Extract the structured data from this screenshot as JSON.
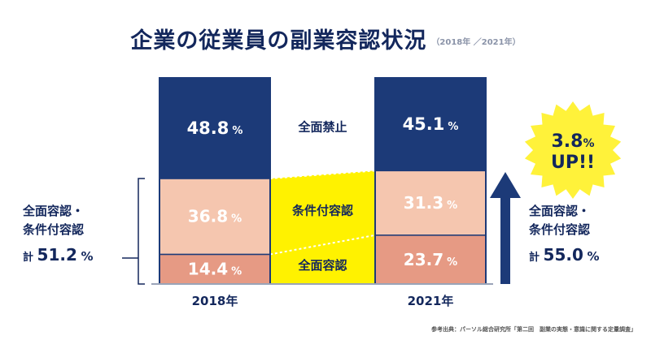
{
  "title": "企業の従業員の副業容認状況",
  "subtitle": "（2018年 ／2021年）",
  "chart_data": {
    "type": "bar",
    "stacked": true,
    "categories": [
      "2018年",
      "2021年"
    ],
    "series": [
      {
        "name": "全面容認",
        "values": [
          14.4,
          23.7
        ],
        "labels": [
          "14.4",
          "23.7"
        ],
        "color": "#e69a84"
      },
      {
        "name": "条件付容認",
        "values": [
          36.8,
          31.3
        ],
        "labels": [
          "36.8",
          "31.3"
        ],
        "color": "#f5c6af"
      },
      {
        "name": "全面禁止",
        "values": [
          48.8,
          45.1
        ],
        "labels": [
          "48.8",
          "45.1"
        ],
        "color": "#1c3a78"
      }
    ],
    "unit": "%",
    "ylim": [
      0,
      100
    ]
  },
  "left_summary": {
    "line1": "全面容認・",
    "line2": "条件付容認",
    "prefix": "計",
    "value": "51.2",
    "unit": "%"
  },
  "right_summary": {
    "line1": "全面容認・",
    "line2": "条件付容認",
    "prefix": "計",
    "value": "55.0",
    "unit": "%"
  },
  "badge": {
    "value": "3.8",
    "unit": "%",
    "text": "UP!!"
  },
  "source": "参考出典：パーソル総合研究所「第二回　副業の実態・意識に関する定量調査」",
  "colors": {
    "navy": "#1c3a78",
    "yellow": "#fff200",
    "badge": "#fff23a"
  }
}
